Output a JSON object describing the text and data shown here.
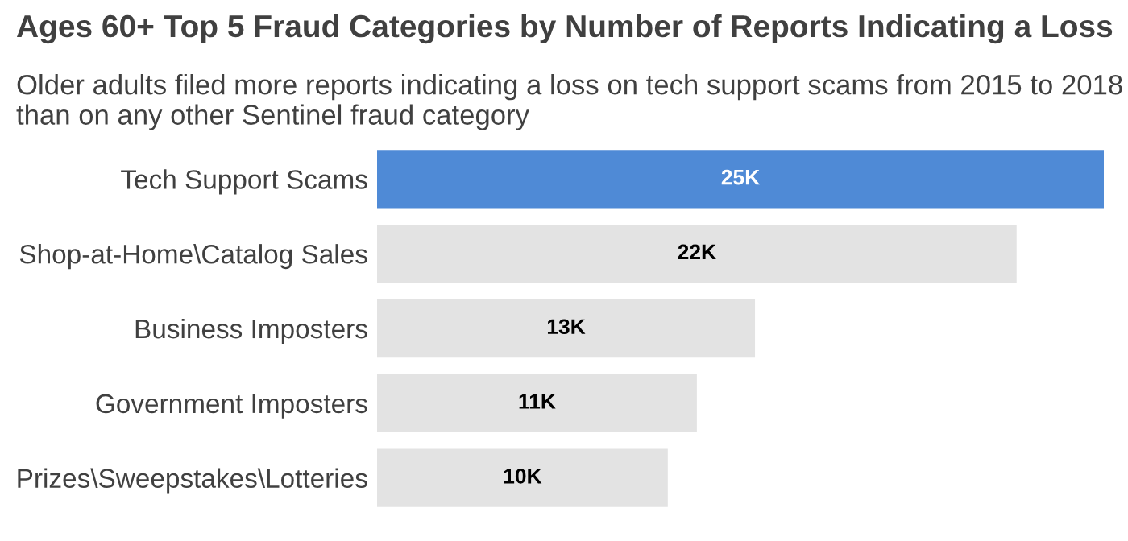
{
  "chart_data": {
    "type": "bar",
    "orientation": "horizontal",
    "title": "Ages 60+ Top 5 Fraud Categories by Number of Reports Indicating a Loss",
    "subtitle": "Older adults filed more reports indicating a loss on tech support scams from 2015 to 2018 than on any other Sentinel fraud category",
    "categories": [
      "Tech Support Scams",
      "Shop-at-Home\\Catalog Sales",
      "Business Imposters",
      "Government Imposters",
      "Prizes\\Sweepstakes\\Lotteries"
    ],
    "values": [
      25000,
      22000,
      13000,
      11000,
      10000
    ],
    "colors": [
      "#4f8ad6",
      "#e3e3e3",
      "#e3e3e3",
      "#e3e3e3",
      "#e3e3e3"
    ],
    "value_labels": [
      "25K",
      "22K",
      "13K",
      "11K",
      "10K"
    ],
    "grid": false,
    "legend": false
  }
}
